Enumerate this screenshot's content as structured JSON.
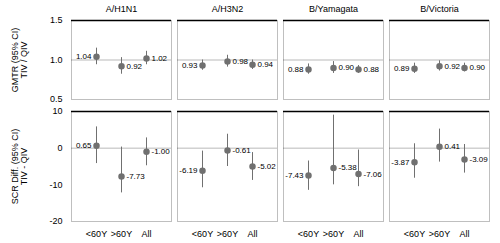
{
  "chart_data": [
    {
      "type": "scatter",
      "categories": [
        "<60Y",
        ">60Y",
        "All"
      ],
      "ylabel": "GMTR (95% CI)\nTIV / QIV",
      "ylim": [
        0.5,
        1.5
      ],
      "yticks": [
        0.5,
        {
          "value": 1.0,
          "label": "1.0"
        },
        1.5
      ],
      "threshold": 1.5,
      "hline": 1.0,
      "color": "#707070",
      "data_labels": true,
      "tick_labels": "y",
      "series": [
        {
          "name": "A/H1N1",
          "values": [
            1.04,
            0.92,
            1.02
          ],
          "ci_low": [
            0.94,
            0.82,
            0.94
          ],
          "ci_high": [
            1.15,
            1.03,
            1.11
          ],
          "value_labels": [
            "1.04",
            "0.92",
            "1.02"
          ]
        },
        {
          "name": "A/H3N2",
          "values": [
            0.93,
            0.98,
            0.94
          ],
          "ci_low": [
            0.87,
            0.91,
            0.88
          ],
          "ci_high": [
            1.0,
            1.06,
            1.0
          ],
          "value_labels": [
            "0.93",
            "0.98",
            "0.94"
          ]
        },
        {
          "name": "B/Yamagata",
          "values": [
            0.88,
            0.9,
            0.88
          ],
          "ci_low": [
            0.82,
            0.83,
            0.83
          ],
          "ci_high": [
            0.95,
            0.98,
            0.93
          ],
          "value_labels": [
            "0.88",
            "0.90",
            "0.88"
          ]
        },
        {
          "name": "B/Victoria",
          "values": [
            0.89,
            0.92,
            0.9
          ],
          "ci_low": [
            0.83,
            0.86,
            0.85
          ],
          "ci_high": [
            0.96,
            0.99,
            0.96
          ],
          "value_labels": [
            "0.89",
            "0.92",
            "0.90"
          ]
        }
      ]
    },
    {
      "type": "scatter",
      "categories": [
        "<60Y",
        ">60Y",
        "All"
      ],
      "ylabel": "SCR Diff. (95% CI)\nTIV - QIV",
      "ylim": [
        -20,
        10
      ],
      "yticks": [
        -20,
        -10,
        0,
        10
      ],
      "threshold": 10,
      "hline": 0.0,
      "color": "#707070",
      "data_labels": true,
      "series": [
        {
          "name": "A/H1N1",
          "values": [
            0.65,
            -7.73,
            -1.0
          ],
          "ci_low": [
            -4.2,
            -12.2,
            -4.8
          ],
          "ci_high": [
            5.8,
            0.3,
            2.8
          ],
          "value_labels": [
            "0.65",
            "-7.73",
            "-1.00"
          ]
        },
        {
          "name": "A/H3N2",
          "values": [
            -6.19,
            -0.61,
            -5.02
          ],
          "ci_low": [
            -10.8,
            -5.0,
            -8.8
          ],
          "ci_high": [
            -0.8,
            3.8,
            -1.2
          ],
          "value_labels": [
            "-6.19",
            "-0.61",
            "-5.02"
          ]
        },
        {
          "name": "B/Yamagata",
          "values": [
            -7.43,
            -5.38,
            -7.06
          ],
          "ci_low": [
            -11.5,
            -10.0,
            -10.5
          ],
          "ci_high": [
            -3.5,
            9.0,
            -0.5
          ],
          "value_labels": [
            "-7.43",
            "-5.38",
            "-7.06"
          ]
        },
        {
          "name": "B/Victoria",
          "values": [
            -3.87,
            0.41,
            -3.09
          ],
          "ci_low": [
            -8.2,
            -3.8,
            -6.8
          ],
          "ci_high": [
            1.2,
            5.2,
            1.0
          ],
          "value_labels": [
            "-3.87",
            "0.41",
            "-3.09"
          ]
        }
      ]
    }
  ]
}
